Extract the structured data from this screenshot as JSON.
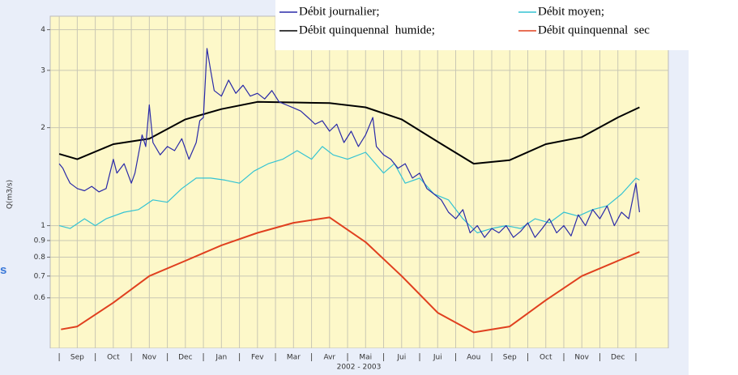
{
  "chart_data": {
    "type": "line",
    "y_label": "Q(m3/s)",
    "x_label": "2002 - 2003",
    "side_fragment": "s",
    "categories": [
      "Sep",
      "Oct",
      "Nov",
      "Dec",
      "Jan",
      "Fev",
      "Mar",
      "Avr",
      "Mai",
      "Jui",
      "Jui",
      "Aou",
      "Sep",
      "Oct",
      "Nov",
      "Dec"
    ],
    "xlim": [
      -0.25,
      16.9
    ],
    "ylim": [
      0.42,
      4.4
    ],
    "log_y": true,
    "yticks": [
      0.6,
      0.7,
      0.8,
      0.9,
      1,
      2,
      3,
      4
    ],
    "grid": true,
    "legend": "top-right",
    "series": [
      {
        "name": "Débit journalier;",
        "color": "#2a2aa8",
        "x": [
          0,
          0.1,
          0.2,
          0.3,
          0.5,
          0.7,
          0.9,
          1.1,
          1.3,
          1.5,
          1.6,
          1.8,
          2.0,
          2.1,
          2.3,
          2.4,
          2.5,
          2.6,
          2.8,
          3.0,
          3.2,
          3.4,
          3.6,
          3.8,
          3.9,
          4.0,
          4.1,
          4.2,
          4.3,
          4.5,
          4.7,
          4.9,
          5.1,
          5.3,
          5.5,
          5.7,
          5.9,
          6.1,
          6.3,
          6.5,
          6.7,
          6.9,
          7.1,
          7.3,
          7.5,
          7.7,
          7.9,
          8.1,
          8.3,
          8.5,
          8.7,
          8.8,
          9.0,
          9.2,
          9.4,
          9.6,
          9.8,
          10.0,
          10.2,
          10.4,
          10.6,
          10.8,
          11.0,
          11.2,
          11.4,
          11.6,
          11.8,
          12.0,
          12.2,
          12.4,
          12.6,
          12.8,
          13.0,
          13.2,
          13.4,
          13.6,
          13.8,
          14.0,
          14.2,
          14.4,
          14.6,
          14.8,
          15.0,
          15.2,
          15.4,
          15.6,
          15.8,
          16.0,
          16.1
        ],
        "values": [
          1.55,
          1.5,
          1.42,
          1.35,
          1.3,
          1.28,
          1.32,
          1.27,
          1.3,
          1.6,
          1.45,
          1.55,
          1.35,
          1.45,
          1.9,
          1.75,
          2.35,
          1.8,
          1.65,
          1.75,
          1.7,
          1.85,
          1.6,
          1.8,
          2.1,
          2.15,
          3.5,
          3.0,
          2.6,
          2.5,
          2.8,
          2.55,
          2.7,
          2.5,
          2.55,
          2.45,
          2.6,
          2.4,
          2.35,
          2.3,
          2.25,
          2.15,
          2.05,
          2.1,
          1.95,
          2.05,
          1.8,
          1.95,
          1.75,
          1.9,
          2.15,
          1.75,
          1.65,
          1.6,
          1.5,
          1.55,
          1.4,
          1.45,
          1.3,
          1.25,
          1.2,
          1.1,
          1.05,
          1.12,
          0.95,
          1.0,
          0.92,
          0.98,
          0.95,
          1.0,
          0.92,
          0.96,
          1.02,
          0.92,
          0.98,
          1.05,
          0.95,
          1.0,
          0.93,
          1.08,
          1.0,
          1.12,
          1.05,
          1.15,
          1.0,
          1.1,
          1.05,
          1.35,
          1.1
        ]
      },
      {
        "name": "Débit moyen;",
        "color": "#33c3d3",
        "x": [
          0,
          0.3,
          0.7,
          1.0,
          1.3,
          1.8,
          2.2,
          2.6,
          3.0,
          3.4,
          3.8,
          4.2,
          4.6,
          5.0,
          5.4,
          5.8,
          6.2,
          6.6,
          7.0,
          7.3,
          7.6,
          8.0,
          8.5,
          9.0,
          9.3,
          9.6,
          10.0,
          10.4,
          10.8,
          11.2,
          11.6,
          12.0,
          12.4,
          12.8,
          13.2,
          13.6,
          14.0,
          14.4,
          14.8,
          15.2,
          15.6,
          16.0,
          16.1
        ],
        "values": [
          1.0,
          0.98,
          1.05,
          1.0,
          1.05,
          1.1,
          1.12,
          1.2,
          1.18,
          1.3,
          1.4,
          1.4,
          1.38,
          1.35,
          1.47,
          1.55,
          1.6,
          1.7,
          1.6,
          1.75,
          1.65,
          1.6,
          1.68,
          1.45,
          1.55,
          1.35,
          1.4,
          1.25,
          1.2,
          1.05,
          0.95,
          0.98,
          1.0,
          0.98,
          1.05,
          1.02,
          1.1,
          1.07,
          1.12,
          1.15,
          1.25,
          1.4,
          1.38
        ]
      },
      {
        "name": "Débit quinquennal  humide;",
        "color": "#000000",
        "x": [
          0,
          0.5,
          1.5,
          2.5,
          3.5,
          4.5,
          5.5,
          6.5,
          7.5,
          8.5,
          9.5,
          10.5,
          11.5,
          12.5,
          13.5,
          14.5,
          15.5,
          16.1
        ],
        "values": [
          1.66,
          1.6,
          1.78,
          1.85,
          2.12,
          2.28,
          2.4,
          2.39,
          2.38,
          2.31,
          2.12,
          1.81,
          1.55,
          1.59,
          1.78,
          1.87,
          2.15,
          2.31
        ]
      },
      {
        "name": "Débit quinquennal  sec",
        "color": "#e0401f",
        "x": [
          0.05,
          0.5,
          1.5,
          2.5,
          3.5,
          4.5,
          5.5,
          6.5,
          7.5,
          8.5,
          9.5,
          10.5,
          11.5,
          12.5,
          13.5,
          14.5,
          15.5,
          16.1
        ],
        "values": [
          0.48,
          0.49,
          0.58,
          0.7,
          0.78,
          0.87,
          0.95,
          1.02,
          1.06,
          0.89,
          0.7,
          0.54,
          0.47,
          0.49,
          0.59,
          0.7,
          0.78,
          0.83
        ]
      }
    ]
  }
}
